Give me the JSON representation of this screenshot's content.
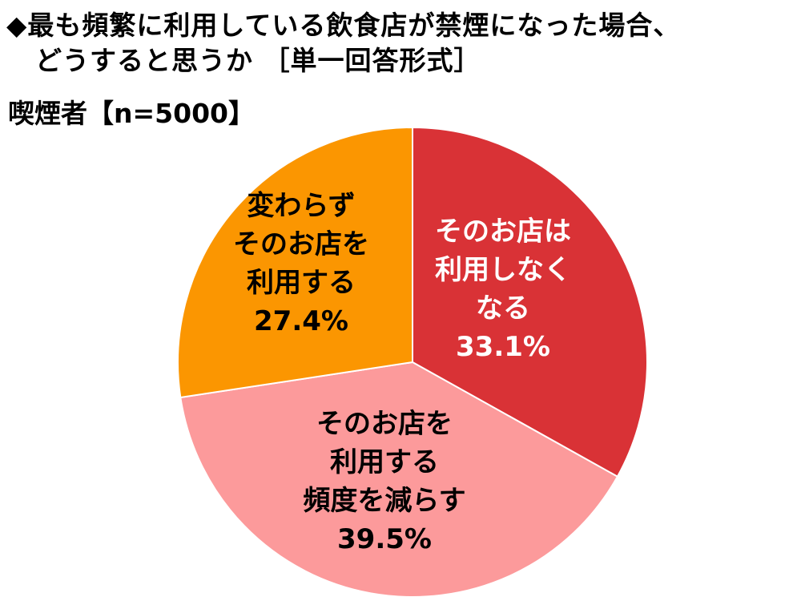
{
  "title_line1": "◆最も頻繁に利用している飲食店が禁煙になった場合、",
  "title_line2": "どうすると思うか ［単一回答形式］",
  "subtitle": "喫煙者【n=5000】",
  "chart_data": {
    "type": "pie",
    "title": "最も頻繁に利用している飲食店が禁煙になった場合、どうすると思うか ［単一回答形式］",
    "subtitle": "喫煙者【n=5000】",
    "unit": "%",
    "start": "12 o'clock",
    "direction": "clockwise",
    "slices": [
      {
        "label_lines": [
          "そのお店は",
          "利用しなく",
          "なる"
        ],
        "value": 33.1,
        "value_text": "33.1%",
        "color": "#d93236",
        "label_color": "#ffffff"
      },
      {
        "label_lines": [
          "そのお店を",
          "利用する",
          "頻度を減らす"
        ],
        "value": 39.5,
        "value_text": "39.5%",
        "color": "#fc9a9b",
        "label_color": "#000000"
      },
      {
        "label_lines": [
          "変わらず",
          "そのお店を",
          "利用する"
        ],
        "value": 27.4,
        "value_text": "27.4%",
        "color": "#fb9601",
        "label_color": "#000000"
      }
    ]
  }
}
